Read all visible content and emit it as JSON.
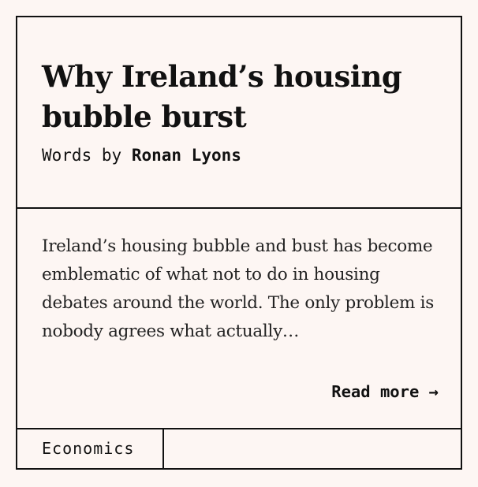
{
  "article": {
    "title": "Why Ireland’s housing bubble burst",
    "byline_prefix": "Words by",
    "author": "Ronan Lyons",
    "excerpt": "Ireland’s housing bubble and bust has become emblematic of what not to do in housing debates around the world. The only problem is nobody agrees what actually…",
    "read_more_label": "Read more →",
    "tag": "Economics"
  },
  "colors": {
    "background": "#fdf6f3",
    "text": "#111111",
    "border": "#111111"
  }
}
